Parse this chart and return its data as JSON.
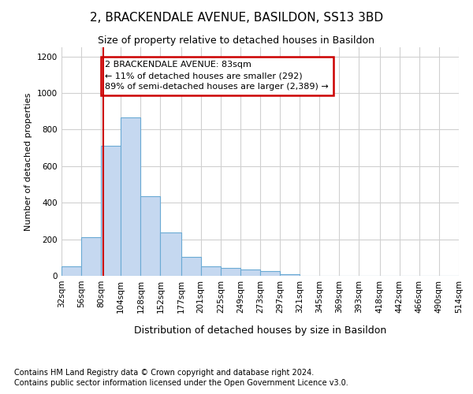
{
  "title1": "2, BRACKENDALE AVENUE, BASILDON, SS13 3BD",
  "title2": "Size of property relative to detached houses in Basildon",
  "xlabel": "Distribution of detached houses by size in Basildon",
  "ylabel": "Number of detached properties",
  "footnote1": "Contains HM Land Registry data © Crown copyright and database right 2024.",
  "footnote2": "Contains public sector information licensed under the Open Government Licence v3.0.",
  "annotation_title": "2 BRACKENDALE AVENUE: 83sqm",
  "annotation_line1": "← 11% of detached houses are smaller (292)",
  "annotation_line2": "89% of semi-detached houses are larger (2,389) →",
  "property_size": 83,
  "bins": [
    32,
    56,
    80,
    104,
    128,
    152,
    177,
    201,
    225,
    249,
    273,
    297,
    321,
    345,
    369,
    393,
    418,
    442,
    466,
    490,
    514
  ],
  "values": [
    50,
    210,
    710,
    865,
    435,
    235,
    105,
    50,
    45,
    35,
    25,
    10,
    0,
    0,
    0,
    0,
    0,
    0,
    0,
    0
  ],
  "bar_color": "#c5d8f0",
  "bar_edge_color": "#6aaad4",
  "vline_color": "#cc0000",
  "annotation_box_color": "#cc0000",
  "grid_color": "#d0d0d0",
  "background_color": "#ffffff",
  "ylim": [
    0,
    1250
  ],
  "yticks": [
    0,
    200,
    400,
    600,
    800,
    1000,
    1200
  ],
  "title1_fontsize": 11,
  "title2_fontsize": 9,
  "ylabel_fontsize": 8,
  "xlabel_fontsize": 9,
  "tick_fontsize": 7.5,
  "footnote_fontsize": 7
}
